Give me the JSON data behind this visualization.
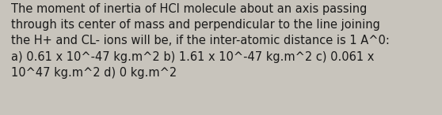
{
  "text": "The moment of inertia of HCI molecule about an axis passing\nthrough its center of mass and perpendicular to the line joining\nthe H+ and CL- ions will be, if the inter-atomic distance is 1 A^0:\na) 0.61 x 10^-47 kg.m^2 b) 1.61 x 10^-47 kg.m^2 c) 0.061 x\n10^47 kg.m^2 d) 0 kg.m^2",
  "bg_color": "#c8c4bc",
  "text_color": "#1a1a1a",
  "font_size": 10.5,
  "fig_width": 5.58,
  "fig_height": 1.46,
  "dpi": 100
}
